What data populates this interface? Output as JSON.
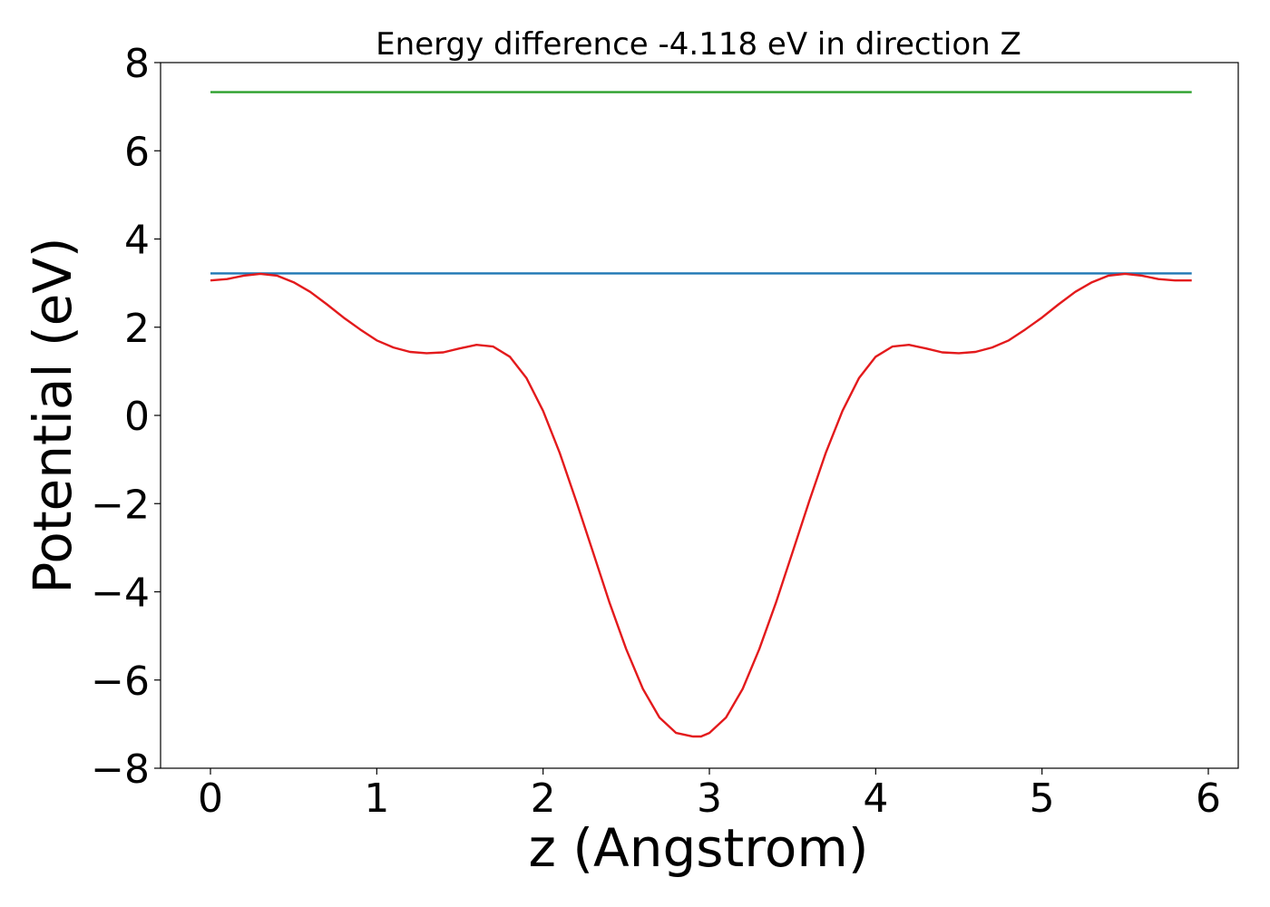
{
  "chart_data": {
    "type": "line",
    "title": "Energy difference -4.118 eV in direction Z",
    "xlabel": "z (Angstrom)",
    "ylabel": "Potential (eV)",
    "xlim": [
      -0.3,
      6.18
    ],
    "ylim": [
      -8,
      8
    ],
    "xticks": [
      0,
      1,
      2,
      3,
      4,
      5,
      6
    ],
    "xtick_labels": [
      "0",
      "1",
      "2",
      "3",
      "4",
      "5",
      "6"
    ],
    "yticks": [
      8,
      6,
      4,
      2,
      0,
      -2,
      -4,
      -6,
      -8
    ],
    "ytick_labels": [
      "8",
      "6",
      "4",
      "2",
      "0",
      "−2",
      "−4",
      "−6",
      "−8"
    ],
    "grid": false,
    "legend": "none",
    "series": [
      {
        "color": "#2ca02c",
        "x": [
          0,
          5.9
        ],
        "y": [
          7.33,
          7.33
        ]
      },
      {
        "color": "#1f77b4",
        "x": [
          0,
          5.9
        ],
        "y": [
          3.22,
          3.22
        ]
      },
      {
        "color": "#e31a1c",
        "x": [
          0,
          0.1,
          0.2,
          0.3,
          0.4,
          0.5,
          0.6,
          0.7,
          0.8,
          0.9,
          1.0,
          1.1,
          1.2,
          1.3,
          1.4,
          1.5,
          1.6,
          1.7,
          1.8,
          1.9,
          2.0,
          2.1,
          2.2,
          2.3,
          2.4,
          2.5,
          2.6,
          2.7,
          2.8,
          2.9,
          2.95,
          3.0,
          3.1,
          3.2,
          3.3,
          3.4,
          3.5,
          3.6,
          3.7,
          3.8,
          3.9,
          4.0,
          4.1,
          4.2,
          4.3,
          4.4,
          4.5,
          4.6,
          4.7,
          4.8,
          4.9,
          5.0,
          5.1,
          5.2,
          5.3,
          5.4,
          5.5,
          5.6,
          5.7,
          5.8,
          5.9
        ],
        "y": [
          3.06,
          3.09,
          3.17,
          3.21,
          3.17,
          3.02,
          2.8,
          2.52,
          2.22,
          1.95,
          1.7,
          1.54,
          1.44,
          1.41,
          1.43,
          1.52,
          1.6,
          1.56,
          1.33,
          0.85,
          0.1,
          -0.85,
          -1.95,
          -3.1,
          -4.25,
          -5.3,
          -6.2,
          -6.85,
          -7.2,
          -7.28,
          -7.28,
          -7.2,
          -6.85,
          -6.2,
          -5.3,
          -4.25,
          -3.1,
          -1.95,
          -0.85,
          0.1,
          0.85,
          1.33,
          1.56,
          1.6,
          1.52,
          1.43,
          1.41,
          1.44,
          1.54,
          1.7,
          1.95,
          2.22,
          2.52,
          2.8,
          3.02,
          3.17,
          3.21,
          3.17,
          3.09,
          3.06,
          3.06
        ]
      }
    ]
  }
}
